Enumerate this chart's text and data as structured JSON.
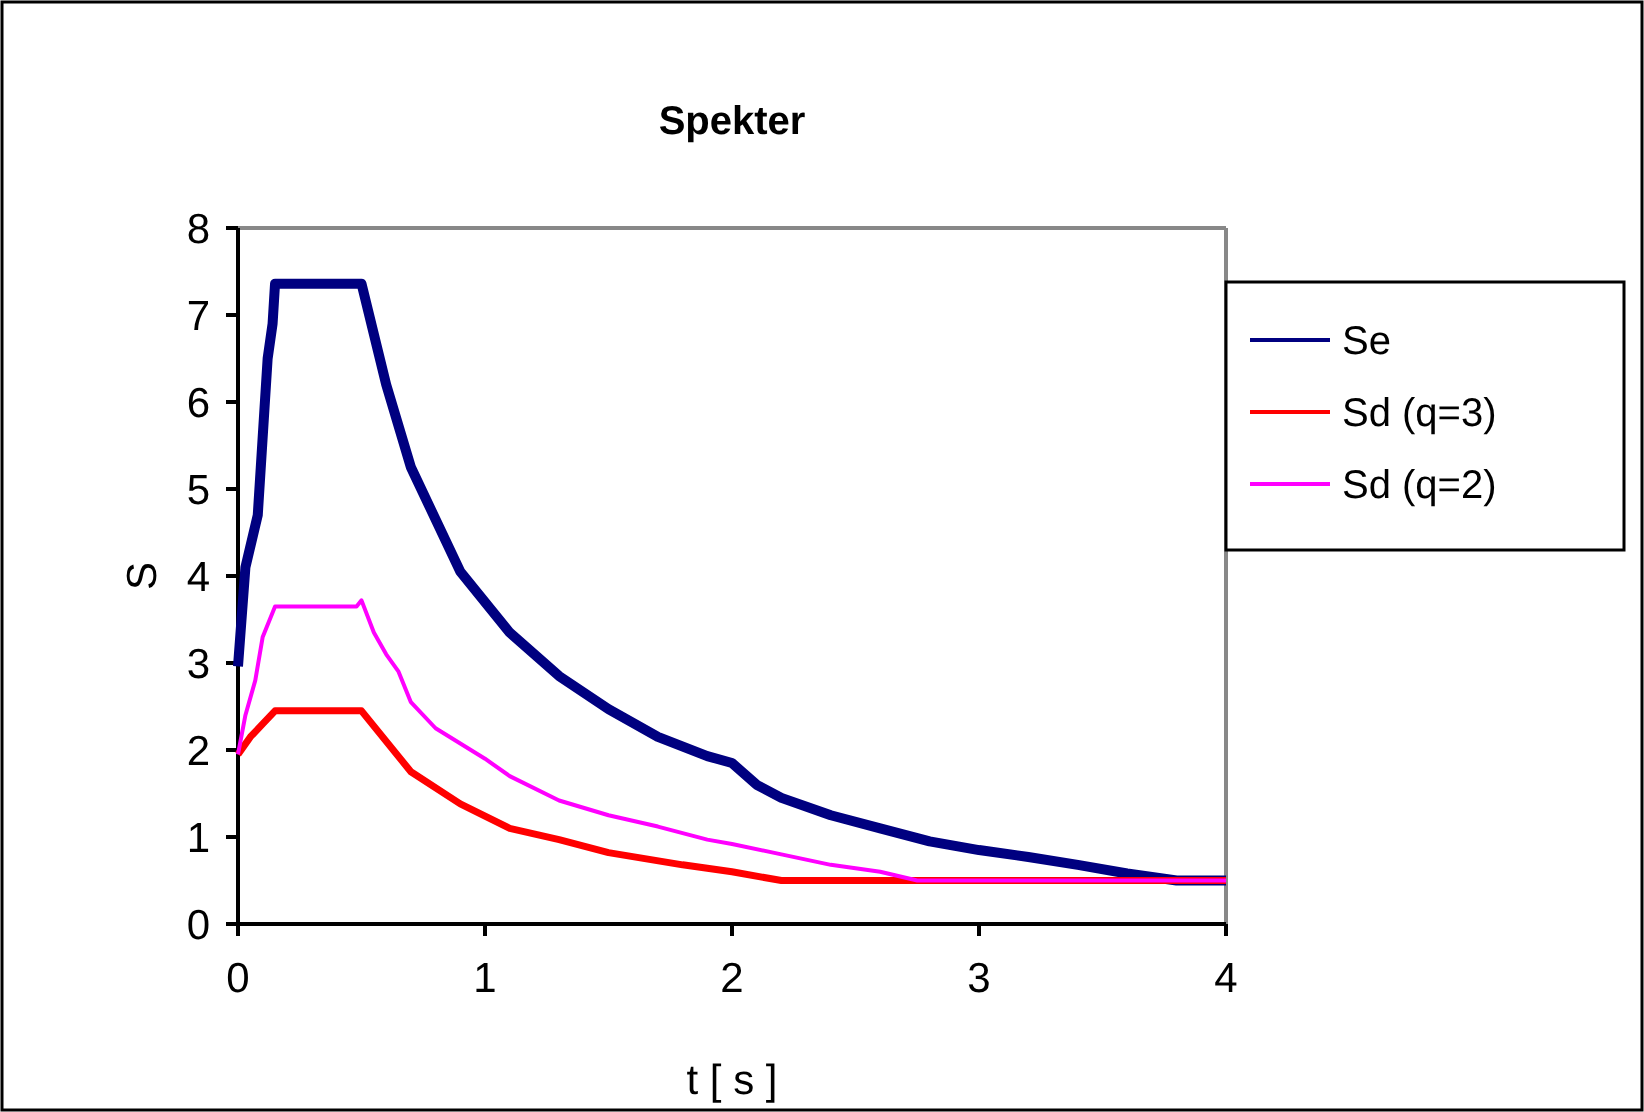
{
  "chart_data": {
    "type": "line",
    "title": "Spekter",
    "xlabel": "t [ s ]",
    "ylabel": "S",
    "xlim": [
      0,
      4
    ],
    "xticks": [
      0,
      1,
      2,
      3,
      4
    ],
    "ylim": [
      0,
      8
    ],
    "yticks": [
      0,
      1,
      2,
      3,
      4,
      5,
      6,
      7,
      8
    ],
    "grid": false,
    "legend": "right",
    "marker": "none",
    "series": [
      {
        "name": "Se",
        "color": "#000080",
        "x": [
          0,
          0.03,
          0.08,
          0.12,
          0.14,
          0.15,
          0.5,
          0.6,
          0.7,
          0.9,
          1.1,
          1.3,
          1.5,
          1.7,
          1.9,
          2.0,
          2.1,
          2.2,
          2.4,
          2.6,
          2.8,
          3.0,
          3.2,
          3.4,
          3.6,
          3.8,
          4
        ],
        "values": [
          2.96,
          4.1,
          4.7,
          6.5,
          6.9,
          7.36,
          7.36,
          6.2,
          5.25,
          4.05,
          3.35,
          2.85,
          2.47,
          2.15,
          1.93,
          1.85,
          1.6,
          1.45,
          1.25,
          1.1,
          0.95,
          0.85,
          0.77,
          0.68,
          0.58,
          0.5,
          0.5
        ]
      },
      {
        "name": "Sd (q=3)",
        "color": "#ff0000",
        "x": [
          0,
          0.05,
          0.1,
          0.15,
          0.5,
          0.7,
          0.9,
          1.1,
          1.3,
          1.5,
          1.8,
          2.0,
          2.2,
          4
        ],
        "values": [
          1.95,
          2.15,
          2.3,
          2.45,
          2.45,
          1.75,
          1.38,
          1.1,
          0.97,
          0.82,
          0.68,
          0.6,
          0.5,
          0.5
        ]
      },
      {
        "name": "Sd (q=2)",
        "color": "#ff00ff",
        "x": [
          0,
          0.03,
          0.07,
          0.1,
          0.15,
          0.48,
          0.5,
          0.55,
          0.6,
          0.65,
          0.7,
          0.8,
          1.0,
          1.1,
          1.3,
          1.5,
          1.7,
          1.9,
          2.0,
          2.2,
          2.4,
          2.6,
          2.75,
          4
        ],
        "values": [
          1.95,
          2.4,
          2.8,
          3.3,
          3.65,
          3.65,
          3.72,
          3.35,
          3.1,
          2.9,
          2.55,
          2.25,
          1.9,
          1.7,
          1.42,
          1.25,
          1.12,
          0.97,
          0.92,
          0.8,
          0.68,
          0.6,
          0.5,
          0.5
        ]
      }
    ]
  }
}
